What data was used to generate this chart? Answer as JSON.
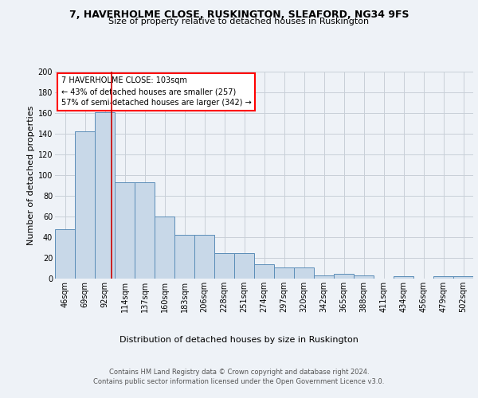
{
  "title": "7, HAVERHOLME CLOSE, RUSKINGTON, SLEAFORD, NG34 9FS",
  "subtitle": "Size of property relative to detached houses in Ruskington",
  "xlabel": "Distribution of detached houses by size in Ruskington",
  "ylabel": "Number of detached properties",
  "bar_values": [
    48,
    142,
    161,
    93,
    93,
    60,
    42,
    42,
    25,
    25,
    14,
    11,
    11,
    3,
    5,
    3,
    0,
    2,
    0,
    2,
    2
  ],
  "bin_labels": [
    "46sqm",
    "69sqm",
    "92sqm",
    "114sqm",
    "137sqm",
    "160sqm",
    "183sqm",
    "206sqm",
    "228sqm",
    "251sqm",
    "274sqm",
    "297sqm",
    "320sqm",
    "342sqm",
    "365sqm",
    "388sqm",
    "411sqm",
    "434sqm",
    "456sqm",
    "479sqm",
    "502sqm"
  ],
  "bar_color": "#c8d8e8",
  "bar_edge_color": "#5b8db8",
  "red_line_bin": 2.35,
  "annotation_text": "7 HAVERHOLME CLOSE: 103sqm\n← 43% of detached houses are smaller (257)\n57% of semi-detached houses are larger (342) →",
  "annotation_box_color": "white",
  "annotation_box_edge": "red",
  "ylim": [
    0,
    200
  ],
  "yticks": [
    0,
    20,
    40,
    60,
    80,
    100,
    120,
    140,
    160,
    180,
    200
  ],
  "red_line_color": "#cc0000",
  "footer_text": "Contains HM Land Registry data © Crown copyright and database right 2024.\nContains public sector information licensed under the Open Government Licence v3.0.",
  "background_color": "#eef2f7",
  "plot_background": "#eef2f7",
  "grid_color": "#c8cfd8",
  "title_fontsize": 9,
  "subtitle_fontsize": 8,
  "ylabel_fontsize": 8,
  "xlabel_fontsize": 8,
  "tick_fontsize": 7,
  "annotation_fontsize": 7,
  "footer_fontsize": 6
}
